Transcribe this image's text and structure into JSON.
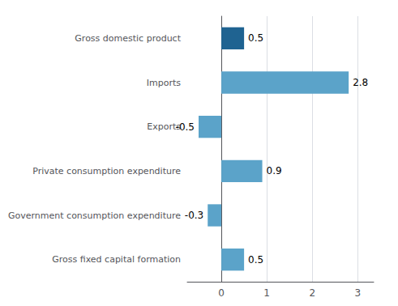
{
  "chart_data": {
    "type": "bar",
    "orientation": "horizontal",
    "categories": [
      "Gross fixed capital formation",
      "Government consumption expenditure",
      "Private consumption expenditure",
      "Exports",
      "Imports",
      "Gross domestic product"
    ],
    "values": [
      0.5,
      -0.3,
      0.9,
      -0.5,
      2.8,
      0.5
    ],
    "colors": [
      "#5BA3C9",
      "#5BA3C9",
      "#5BA3C9",
      "#5BA3C9",
      "#5BA3C9",
      "#1F6391"
    ],
    "xlim": [
      -0.75,
      3.35
    ],
    "xticks": [
      0,
      1,
      2,
      3
    ],
    "grid": true,
    "data_labels": true
  }
}
